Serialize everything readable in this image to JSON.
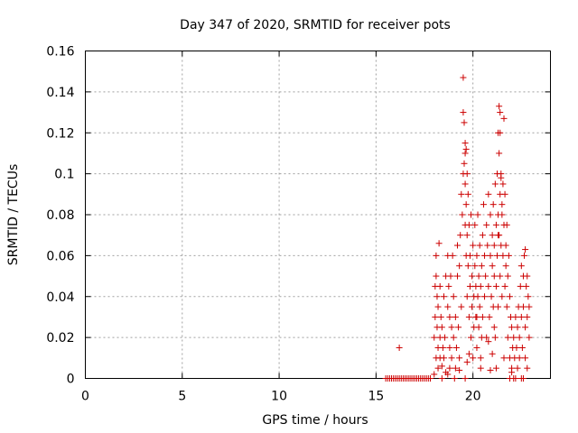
{
  "chart_data": {
    "type": "scatter",
    "title": "Day 347 of 2020, SRMTID for receiver pots",
    "xlabel": "GPS time / hours",
    "ylabel": "SRMTID / TECUs",
    "xlim": [
      0,
      24
    ],
    "ylim": [
      0,
      0.16
    ],
    "xticks": [
      0,
      5,
      10,
      15,
      20
    ],
    "xtick_labels": [
      "0",
      "5",
      "10",
      "15",
      "20"
    ],
    "yticks": [
      0,
      0.02,
      0.04,
      0.06,
      0.08,
      0.1,
      0.12,
      0.14,
      0.16
    ],
    "ytick_labels": [
      "0",
      "0.02",
      "0.04",
      "0.06",
      "0.08",
      "0.1",
      "0.12",
      "0.14",
      "0.16"
    ],
    "grid": true,
    "marker": "+",
    "color": "#cc0000",
    "series": [
      {
        "name": "pots",
        "x": [
          15.5,
          15.6,
          15.7,
          15.8,
          15.9,
          16.0,
          16.1,
          16.2,
          16.3,
          16.4,
          16.5,
          16.6,
          16.7,
          16.8,
          16.9,
          17.0,
          17.1,
          17.2,
          17.3,
          17.4,
          17.5,
          17.6,
          17.7,
          17.8,
          16.2,
          18.0,
          18.0,
          18.05,
          18.05,
          18.1,
          18.1,
          18.1,
          18.15,
          18.15,
          18.2,
          18.2,
          18.2,
          18.25,
          18.3,
          18.3,
          18.3,
          18.35,
          18.4,
          18.4,
          18.45,
          18.5,
          18.5,
          18.55,
          18.6,
          18.6,
          18.7,
          18.7,
          18.75,
          18.8,
          18.8,
          18.8,
          18.85,
          18.9,
          18.9,
          18.95,
          19.0,
          19.0,
          19.05,
          19.1,
          19.1,
          19.15,
          19.2,
          19.2,
          19.25,
          19.3,
          19.3,
          19.35,
          19.4,
          19.4,
          19.45,
          19.5,
          19.5,
          19.5,
          19.55,
          19.55,
          19.6,
          19.6,
          19.6,
          19.6,
          19.65,
          19.65,
          19.65,
          19.7,
          19.7,
          19.7,
          19.75,
          19.75,
          19.8,
          19.8,
          19.85,
          19.85,
          19.9,
          19.9,
          19.95,
          19.95,
          20.0,
          20.0,
          20.05,
          20.05,
          20.1,
          20.1,
          20.15,
          20.15,
          20.2,
          20.2,
          20.25,
          20.25,
          20.3,
          20.3,
          20.35,
          20.35,
          20.4,
          20.4,
          20.45,
          20.45,
          20.5,
          20.5,
          20.55,
          20.6,
          20.6,
          20.65,
          20.7,
          20.7,
          20.75,
          20.8,
          20.8,
          20.85,
          20.9,
          20.9,
          20.95,
          21.0,
          21.0,
          21.05,
          21.05,
          21.1,
          21.1,
          21.15,
          21.15,
          21.2,
          21.2,
          21.25,
          21.25,
          21.3,
          21.3,
          21.3,
          21.35,
          21.35,
          21.4,
          21.4,
          21.4,
          21.45,
          21.45,
          21.5,
          21.5,
          21.55,
          21.55,
          21.6,
          21.6,
          21.65,
          21.65,
          21.7,
          21.7,
          21.75,
          21.75,
          21.8,
          21.8,
          21.85,
          21.9,
          21.9,
          21.95,
          22.0,
          22.0,
          22.05,
          22.1,
          22.1,
          22.15,
          22.2,
          22.2,
          22.25,
          22.3,
          22.3,
          22.35,
          22.4,
          22.4,
          22.45,
          22.5,
          22.5,
          22.55,
          22.6,
          22.6,
          22.65,
          22.7,
          22.7,
          22.75,
          22.8,
          22.8,
          22.85,
          22.9,
          22.9,
          21.35,
          21.4,
          21.45,
          21.5,
          21.3,
          21.6,
          21.2,
          20.4,
          19.6,
          19.7,
          21.0,
          20.9,
          22.6,
          22.7,
          22.8,
          22.5,
          21.1,
          20.2,
          19.8,
          18.4,
          22.0,
          21.9,
          20.8,
          19.3,
          18.7
        ],
        "y": [
          0,
          0,
          0,
          0,
          0,
          0,
          0,
          0,
          0,
          0,
          0,
          0,
          0,
          0,
          0,
          0,
          0,
          0,
          0,
          0,
          0,
          0,
          0,
          0,
          0.015,
          0.002,
          0.02,
          0.03,
          0.045,
          0.01,
          0.05,
          0.06,
          0.025,
          0.04,
          0.005,
          0.015,
          0.035,
          0.066,
          0.02,
          0.045,
          0.01,
          0.03,
          0.0,
          0.025,
          0.015,
          0.01,
          0.04,
          0.02,
          0.003,
          0.05,
          0.035,
          0.06,
          0.045,
          0.005,
          0.03,
          0.015,
          0.05,
          0.025,
          0.01,
          0.06,
          0.02,
          0.04,
          0.0,
          0.005,
          0.03,
          0.015,
          0.05,
          0.065,
          0.025,
          0.01,
          0.055,
          0.07,
          0.035,
          0.09,
          0.08,
          0.147,
          0.13,
          0.1,
          0.125,
          0.105,
          0.115,
          0.11,
          0.095,
          0.075,
          0.112,
          0.085,
          0.06,
          0.1,
          0.07,
          0.04,
          0.09,
          0.055,
          0.075,
          0.03,
          0.06,
          0.045,
          0.02,
          0.08,
          0.035,
          0.05,
          0.065,
          0.01,
          0.04,
          0.025,
          0.055,
          0.075,
          0.03,
          0.045,
          0.015,
          0.06,
          0.04,
          0.08,
          0.025,
          0.05,
          0.035,
          0.065,
          0.01,
          0.045,
          0.055,
          0.02,
          0.07,
          0.03,
          0.085,
          0.04,
          0.06,
          0.05,
          0.075,
          0.02,
          0.065,
          0.045,
          0.09,
          0.03,
          0.06,
          0.08,
          0.04,
          0.055,
          0.07,
          0.035,
          0.085,
          0.05,
          0.065,
          0.095,
          0.02,
          0.075,
          0.045,
          0.1,
          0.06,
          0.12,
          0.035,
          0.08,
          0.11,
          0.07,
          0.13,
          0.05,
          0.09,
          0.065,
          0.1,
          0.085,
          0.04,
          0.095,
          0.06,
          0.127,
          0.075,
          0.045,
          0.09,
          0.055,
          0.065,
          0.035,
          0.075,
          0.02,
          0.05,
          0.06,
          0.01,
          0.04,
          0.03,
          0.005,
          0.025,
          0.015,
          0.0,
          0.02,
          0.01,
          0.03,
          0.0,
          0.015,
          0.025,
          0.005,
          0.035,
          0.01,
          0.02,
          0.045,
          0.03,
          0.055,
          0.015,
          0.05,
          0.035,
          0.06,
          0.025,
          0.063,
          0.045,
          0.03,
          0.05,
          0.04,
          0.02,
          0.035,
          0.133,
          0.12,
          0.098,
          0.08,
          0.07,
          0.01,
          0.005,
          0.005,
          0.0,
          0.008,
          0.012,
          0.004,
          0.0,
          0.01,
          0.005,
          0.0,
          0.025,
          0.03,
          0.012,
          0.006,
          0.003,
          0.0,
          0.018,
          0.004,
          0.002
        ]
      }
    ]
  }
}
